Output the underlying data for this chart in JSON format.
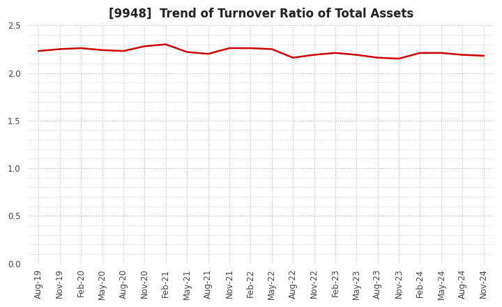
{
  "title": "[9948]  Trend of Turnover Ratio of Total Assets",
  "x_labels": [
    "Aug-19",
    "Nov-19",
    "Feb-20",
    "May-20",
    "Aug-20",
    "Nov-20",
    "Feb-21",
    "May-21",
    "Aug-21",
    "Nov-21",
    "Feb-22",
    "May-22",
    "Aug-22",
    "Nov-22",
    "Feb-23",
    "May-23",
    "Aug-23",
    "Nov-23",
    "Feb-24",
    "May-24",
    "Aug-24",
    "Nov-24"
  ],
  "y_values": [
    2.23,
    2.25,
    2.26,
    2.24,
    2.23,
    2.28,
    2.3,
    2.22,
    2.2,
    2.26,
    2.26,
    2.25,
    2.16,
    2.19,
    2.21,
    2.19,
    2.16,
    2.15,
    2.21,
    2.21,
    2.19,
    2.18
  ],
  "line_color": "#cc0000",
  "line_width": 1.8,
  "ylim": [
    0.0,
    2.5
  ],
  "yticks": [
    0.0,
    0.5,
    1.0,
    1.5,
    2.0,
    2.5
  ],
  "grid_color": "#bbbbbb",
  "bg_color": "#ffffff",
  "plot_bg_color": "#ffffff",
  "title_fontsize": 12,
  "tick_fontsize": 8.5,
  "tick_color": "#444444"
}
